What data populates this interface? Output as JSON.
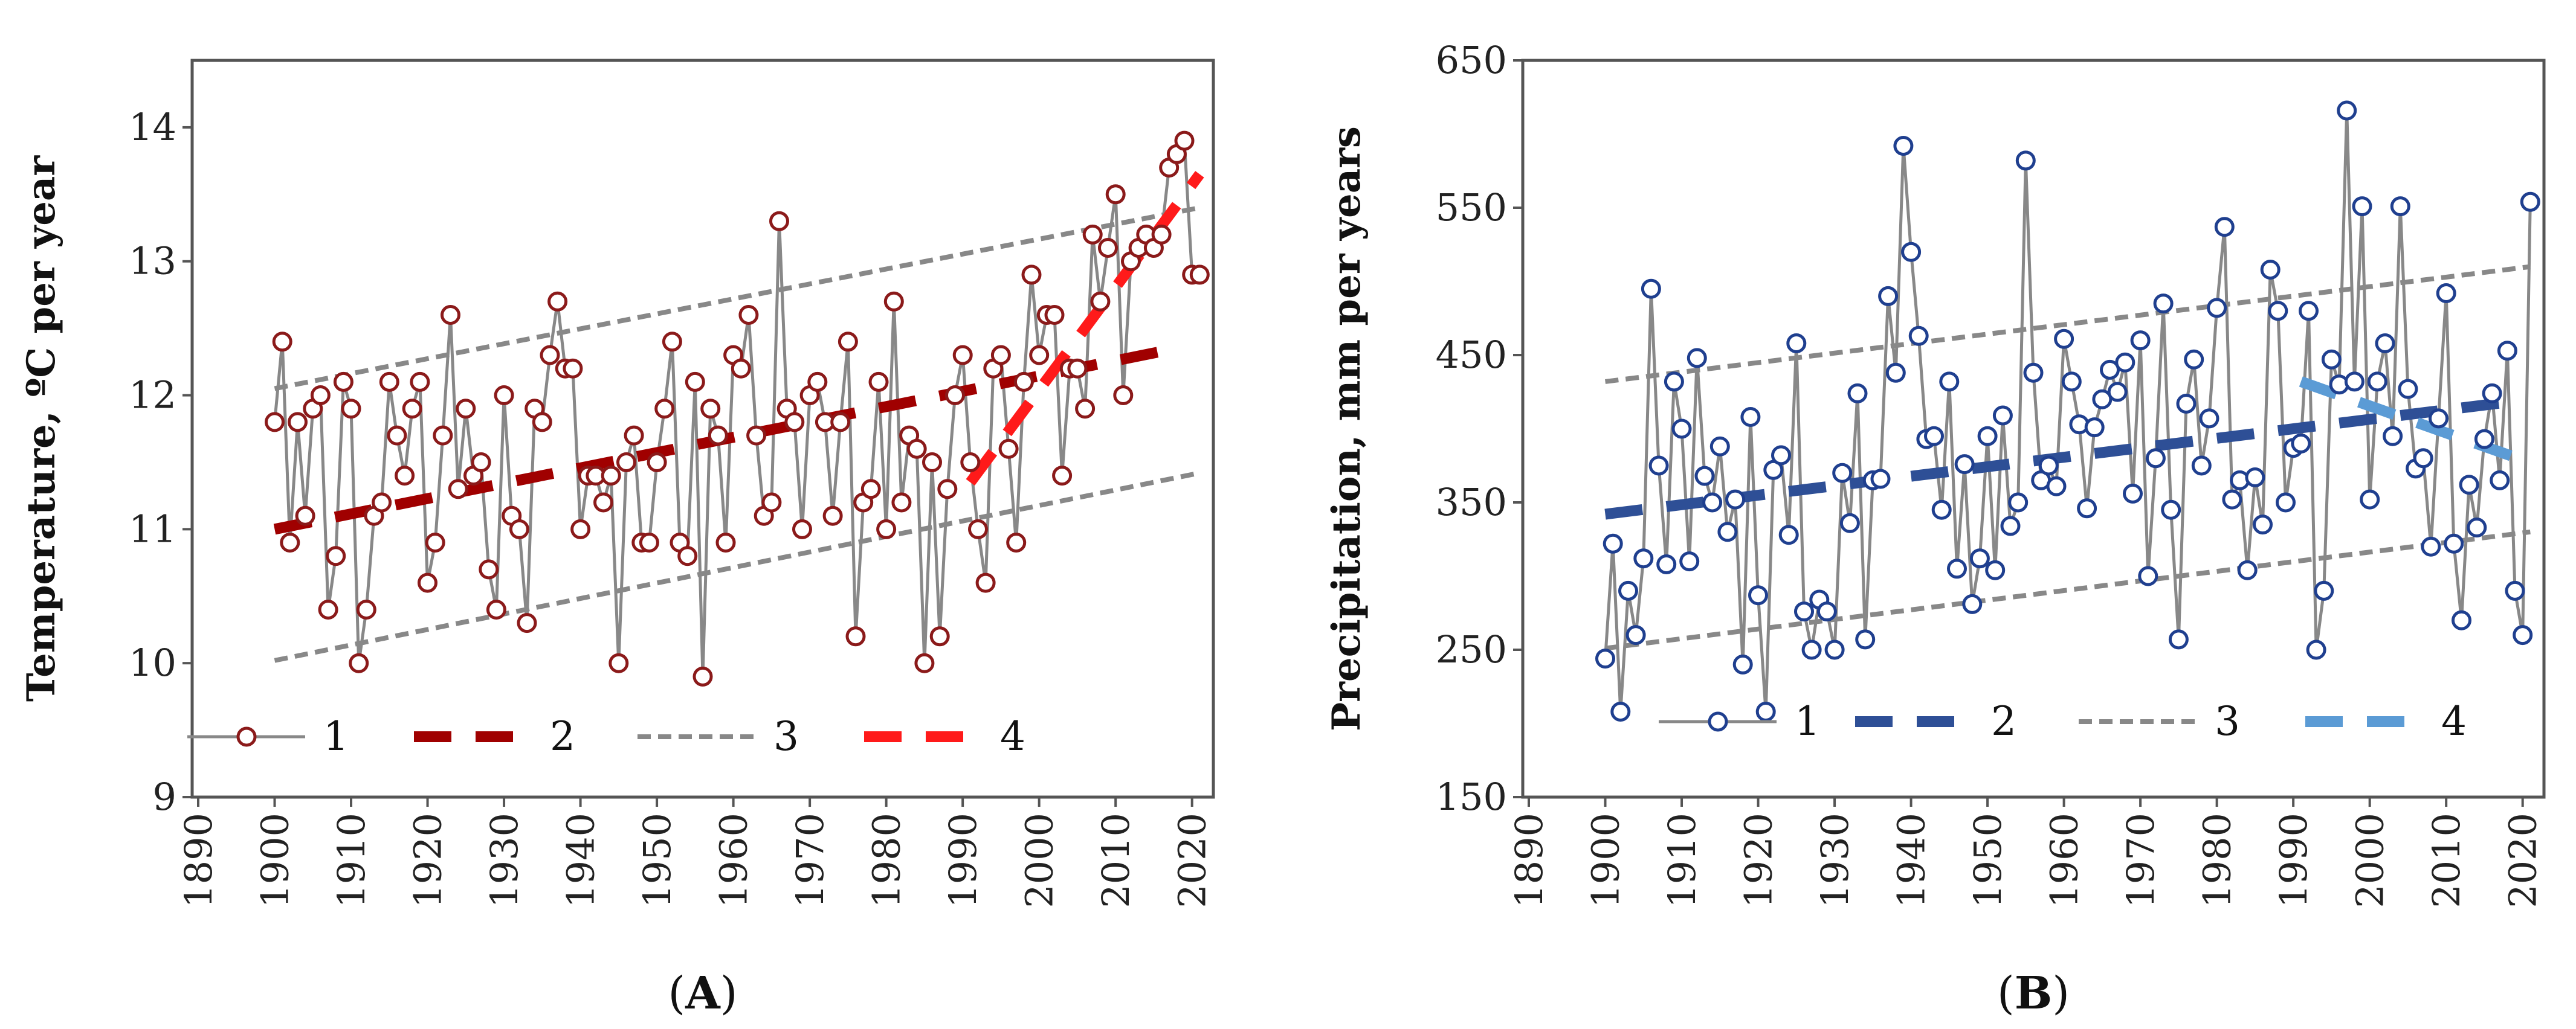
{
  "chart_data": [
    {
      "type": "line",
      "panel_label": "A",
      "ylabel": "Temperature, ºC per year",
      "xlabel": "",
      "xlim": [
        1890,
        2022
      ],
      "ylim": [
        9,
        14.5
      ],
      "xticks": [
        "1890",
        "1900",
        "1910",
        "1920",
        "1930",
        "1940",
        "1950",
        "1960",
        "1970",
        "1980",
        "1990",
        "2000",
        "2010",
        "2020"
      ],
      "yticks": [
        "9",
        "10",
        "11",
        "12",
        "13",
        "14"
      ],
      "colors": {
        "series": "#8B1A1A",
        "line": "#888888",
        "trend": "#A00000",
        "band": "#888888",
        "recent": "#FF1A1A"
      },
      "legend": [
        "1",
        "2",
        "3",
        "4"
      ],
      "x": [
        1900,
        1901,
        1902,
        1903,
        1904,
        1905,
        1906,
        1907,
        1908,
        1909,
        1910,
        1911,
        1912,
        1913,
        1914,
        1915,
        1916,
        1917,
        1918,
        1919,
        1920,
        1921,
        1922,
        1923,
        1924,
        1925,
        1926,
        1927,
        1928,
        1929,
        1930,
        1931,
        1932,
        1933,
        1934,
        1935,
        1936,
        1937,
        1938,
        1939,
        1940,
        1941,
        1942,
        1943,
        1944,
        1945,
        1946,
        1947,
        1948,
        1949,
        1950,
        1951,
        1952,
        1953,
        1954,
        1955,
        1956,
        1957,
        1958,
        1959,
        1960,
        1961,
        1962,
        1963,
        1964,
        1965,
        1966,
        1967,
        1968,
        1969,
        1970,
        1971,
        1972,
        1973,
        1974,
        1975,
        1976,
        1977,
        1978,
        1979,
        1980,
        1981,
        1982,
        1983,
        1984,
        1985,
        1986,
        1987,
        1988,
        1989,
        1990,
        1991,
        1992,
        1993,
        1994,
        1995,
        1996,
        1997,
        1998,
        1999,
        2000,
        2001,
        2002,
        2003,
        2004,
        2005,
        2006,
        2007,
        2008,
        2009,
        2010,
        2011,
        2012,
        2013,
        2014,
        2015,
        2016,
        2017,
        2018,
        2019,
        2020,
        2021
      ],
      "values": [
        11.8,
        12.4,
        10.9,
        11.8,
        11.1,
        11.9,
        12.0,
        10.4,
        10.8,
        12.1,
        11.9,
        10.0,
        10.4,
        11.1,
        11.2,
        12.1,
        11.7,
        11.4,
        11.9,
        12.1,
        10.6,
        10.9,
        11.7,
        12.6,
        11.3,
        11.9,
        11.4,
        11.5,
        10.7,
        10.4,
        12.0,
        11.1,
        11.0,
        10.3,
        11.9,
        11.8,
        12.3,
        12.7,
        12.2,
        12.2,
        11.0,
        11.4,
        11.4,
        11.2,
        11.4,
        10.0,
        11.5,
        11.7,
        10.9,
        10.9,
        11.5,
        11.9,
        12.4,
        10.9,
        10.8,
        12.1,
        9.9,
        11.9,
        11.7,
        10.9,
        12.3,
        12.2,
        12.6,
        11.7,
        11.1,
        11.2,
        13.3,
        11.9,
        11.8,
        11.0,
        12.0,
        12.1,
        11.8,
        11.1,
        11.8,
        12.4,
        10.2,
        11.2,
        11.3,
        12.1,
        11.0,
        12.7,
        11.2,
        11.7,
        11.6,
        10.0,
        11.5,
        10.2,
        11.3,
        12.0,
        12.3,
        11.5,
        11.0,
        10.6,
        12.2,
        12.3,
        11.6,
        10.9,
        12.1,
        12.9,
        12.3,
        12.6,
        12.6,
        11.4,
        12.2,
        12.2,
        11.9,
        13.2,
        12.7,
        13.1,
        13.5,
        12.0,
        13.0,
        13.1,
        13.2,
        13.1,
        13.2,
        13.7,
        13.8,
        13.9,
        12.9,
        12.9
      ],
      "trend_2": {
        "x": [
          1900,
          2018
        ],
        "y": [
          11.0,
          12.35
        ]
      },
      "band_3_upper": {
        "x": [
          1900,
          2021
        ],
        "y": [
          12.05,
          13.4
        ]
      },
      "band_3_lower": {
        "x": [
          1900,
          2021
        ],
        "y": [
          10.02,
          11.42
        ]
      },
      "trend_4": {
        "x": [
          1991,
          2021
        ],
        "y": [
          11.35,
          13.65
        ]
      }
    },
    {
      "type": "line",
      "panel_label": "B",
      "ylabel": "Precipitation, mm per years",
      "xlabel": "",
      "xlim": [
        1890,
        2022
      ],
      "ylim": [
        150,
        650
      ],
      "xticks": [
        "1890",
        "1900",
        "1910",
        "1920",
        "1930",
        "1940",
        "1950",
        "1960",
        "1970",
        "1980",
        "1990",
        "2000",
        "2010",
        "2020"
      ],
      "yticks": [
        "150",
        "250",
        "350",
        "450",
        "550",
        "650"
      ],
      "colors": {
        "series": "#1F3F8F",
        "line": "#888888",
        "trend": "#2E4F96",
        "band": "#888888",
        "recent": "#5B9BD5"
      },
      "legend": [
        "1",
        "2",
        "3",
        "4"
      ],
      "x": [
        1900,
        1901,
        1902,
        1903,
        1904,
        1905,
        1906,
        1907,
        1908,
        1909,
        1910,
        1911,
        1912,
        1913,
        1914,
        1915,
        1916,
        1917,
        1918,
        1919,
        1920,
        1921,
        1922,
        1923,
        1924,
        1925,
        1926,
        1927,
        1928,
        1929,
        1930,
        1931,
        1932,
        1933,
        1934,
        1935,
        1936,
        1937,
        1938,
        1939,
        1940,
        1941,
        1942,
        1943,
        1944,
        1945,
        1946,
        1947,
        1948,
        1949,
        1950,
        1951,
        1952,
        1953,
        1954,
        1955,
        1956,
        1957,
        1958,
        1959,
        1960,
        1961,
        1962,
        1963,
        1964,
        1965,
        1966,
        1967,
        1968,
        1969,
        1970,
        1971,
        1972,
        1973,
        1974,
        1975,
        1976,
        1977,
        1978,
        1979,
        1980,
        1981,
        1982,
        1983,
        1984,
        1985,
        1986,
        1987,
        1988,
        1989,
        1990,
        1991,
        1992,
        1993,
        1994,
        1995,
        1996,
        1997,
        1998,
        1999,
        2000,
        2001,
        2002,
        2003,
        2004,
        2005,
        2006,
        2007,
        2008,
        2009,
        2010,
        2011,
        2012,
        2013,
        2014,
        2015,
        2016,
        2017,
        2018,
        2019,
        2020,
        2021
      ],
      "values": [
        244,
        322,
        208,
        290,
        260,
        312,
        495,
        375,
        308,
        432,
        400,
        310,
        448,
        368,
        350,
        388,
        330,
        352,
        240,
        408,
        287,
        208,
        372,
        382,
        328,
        458,
        276,
        250,
        284,
        276,
        250,
        370,
        336,
        424,
        257,
        365,
        366,
        490,
        438,
        592,
        520,
        463,
        393,
        395,
        345,
        432,
        305,
        376,
        281,
        312,
        395,
        304,
        409,
        334,
        350,
        582,
        438,
        365,
        375,
        361,
        461,
        432,
        403,
        346,
        401,
        420,
        440,
        425,
        445,
        356,
        460,
        300,
        380,
        485,
        345,
        257,
        417,
        447,
        375,
        407,
        482,
        537,
        352,
        365,
        304,
        367,
        335,
        508,
        480,
        350,
        387,
        390,
        480,
        250,
        290,
        447,
        430,
        616,
        432,
        551,
        352,
        432,
        458,
        395,
        551,
        427,
        373,
        380,
        320,
        407,
        492,
        322,
        270,
        362,
        333,
        393,
        424,
        365,
        453,
        290,
        260,
        554
      ],
      "trend_2": {
        "x": [
          1900,
          2018
        ],
        "y": [
          342,
          418
        ]
      },
      "band_3_upper": {
        "x": [
          1900,
          2021
        ],
        "y": [
          432,
          510
        ]
      },
      "band_3_lower": {
        "x": [
          1900,
          2021
        ],
        "y": [
          251,
          330
        ]
      },
      "trend_4": {
        "x": [
          1991,
          2021
        ],
        "y": [
          432,
          377
        ]
      }
    }
  ]
}
